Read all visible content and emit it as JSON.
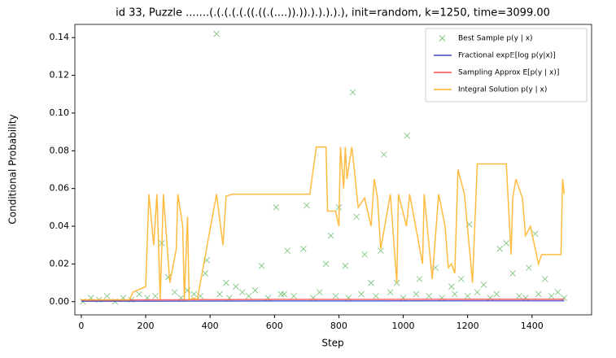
{
  "chart_data": {
    "type": "mixed",
    "title": "id 33, Puzzle .......(.(.(.(.(.((.((.(....)).)).).).).).), init=random, k=1250, time=3099.00",
    "x_label": "Step",
    "y_label": "Conditional Probability",
    "xlim": [
      -20,
      1585
    ],
    "ylim": [
      -0.007,
      0.147
    ],
    "xticks": [
      0,
      200,
      400,
      600,
      800,
      1000,
      1200,
      1400
    ],
    "yticks": [
      {
        "value": 0,
        "label": "0.00"
      },
      {
        "value": 0.02,
        "label": "0.02"
      },
      {
        "value": 0.04,
        "label": "0.04"
      },
      {
        "value": 0.06,
        "label": "0.06"
      },
      {
        "value": 0.08,
        "label": "0.08"
      },
      {
        "value": 0.1,
        "label": "0.10"
      },
      {
        "value": 0.12,
        "label": "0.12"
      },
      {
        "value": 0.14,
        "label": "0.14"
      }
    ],
    "legend": "upper right",
    "series": [
      {
        "name": "Best Sample p(y | x)",
        "kind": "scatter",
        "color": "#2ca02c",
        "x": [
          420,
          843,
          1012,
          940,
          1205,
          605,
          700,
          800,
          855,
          250,
          270,
          390,
          385,
          560,
          640,
          690,
          775,
          760,
          820,
          880,
          930,
          1100,
          1300,
          1320,
          1390,
          1410,
          1440,
          1340,
          1050,
          450,
          480,
          330,
          540,
          900,
          1150,
          1250,
          1480,
          980,
          1180,
          620,
          5,
          30,
          55,
          80,
          105,
          130,
          155,
          180,
          205,
          230,
          290,
          310,
          350,
          370,
          430,
          460,
          500,
          520,
          580,
          630,
          660,
          720,
          740,
          790,
          830,
          870,
          915,
          960,
          1000,
          1040,
          1080,
          1120,
          1160,
          1200,
          1230,
          1270,
          1290,
          1360,
          1380,
          1420,
          1460,
          1500
        ],
        "values": [
          0.142,
          0.111,
          0.088,
          0.078,
          0.041,
          0.05,
          0.051,
          0.05,
          0.045,
          0.031,
          0.013,
          0.022,
          0.015,
          0.019,
          0.027,
          0.028,
          0.035,
          0.02,
          0.019,
          0.025,
          0.027,
          0.018,
          0.028,
          0.031,
          0.018,
          0.036,
          0.012,
          0.015,
          0.012,
          0.01,
          0.008,
          0.006,
          0.006,
          0.01,
          0.008,
          0.009,
          0.005,
          0.01,
          0.012,
          0.004,
          0,
          0.002,
          0.001,
          0.003,
          0,
          0.002,
          0.001,
          0.004,
          0.002,
          0.003,
          0.005,
          0.002,
          0.004,
          0.003,
          0.004,
          0.002,
          0.005,
          0.003,
          0.002,
          0.004,
          0.003,
          0.002,
          0.005,
          0.003,
          0.002,
          0.004,
          0.003,
          0.005,
          0.002,
          0.004,
          0.003,
          0.002,
          0.004,
          0.003,
          0.005,
          0.002,
          0.004,
          0.003,
          0.002,
          0.004,
          0.003,
          0.002
        ]
      },
      {
        "name": "Fractional exp𝔼[log p(y|x)]",
        "kind": "line",
        "color": "#3f48cc",
        "x": [
          0,
          300,
          600,
          900,
          1200,
          1500
        ],
        "values": [
          0.0002,
          0.0003,
          0.0004,
          0.0004,
          0.0005,
          0.0005
        ]
      },
      {
        "name": "Sampling Approx E[p(y | x)]",
        "kind": "line",
        "color": "#ff4d4d",
        "x": [
          0,
          300,
          600,
          900,
          1200,
          1500
        ],
        "values": [
          0.0008,
          0.001,
          0.0012,
          0.0012,
          0.0013,
          0.0013
        ]
      },
      {
        "name": "Integral Solution p(y | x)",
        "kind": "line",
        "color": "#ffb01f",
        "x": [
          0,
          150,
          160,
          200,
          210,
          225,
          235,
          245,
          255,
          275,
          295,
          300,
          315,
          320,
          330,
          335,
          350,
          360,
          420,
          440,
          450,
          470,
          610,
          710,
          730,
          760,
          765,
          790,
          800,
          805,
          815,
          820,
          825,
          840,
          845,
          860,
          880,
          900,
          910,
          920,
          930,
          960,
          980,
          985,
          1010,
          1020,
          1060,
          1065,
          1080,
          1090,
          1110,
          1130,
          1140,
          1150,
          1160,
          1170,
          1190,
          1210,
          1215,
          1230,
          1320,
          1335,
          1340,
          1350,
          1370,
          1380,
          1395,
          1420,
          1430,
          1490,
          1495,
          1500
        ],
        "values": [
          0.001,
          0.001,
          0.005,
          0.008,
          0.057,
          0.03,
          0.057,
          0.001,
          0.057,
          0.01,
          0.028,
          0.057,
          0.04,
          0.001,
          0.045,
          0.001,
          0.002,
          0.001,
          0.057,
          0.03,
          0.056,
          0.057,
          0.057,
          0.057,
          0.082,
          0.082,
          0.048,
          0.048,
          0.04,
          0.082,
          0.06,
          0.082,
          0.065,
          0.082,
          0.075,
          0.05,
          0.055,
          0.04,
          0.065,
          0.055,
          0.028,
          0.057,
          0.01,
          0.057,
          0.04,
          0.057,
          0.02,
          0.057,
          0.03,
          0.012,
          0.057,
          0.04,
          0.018,
          0.02,
          0.015,
          0.07,
          0.057,
          0.02,
          0.01,
          0.073,
          0.073,
          0.025,
          0.055,
          0.065,
          0.055,
          0.035,
          0.04,
          0.02,
          0.025,
          0.025,
          0.065,
          0.057
        ]
      }
    ]
  }
}
